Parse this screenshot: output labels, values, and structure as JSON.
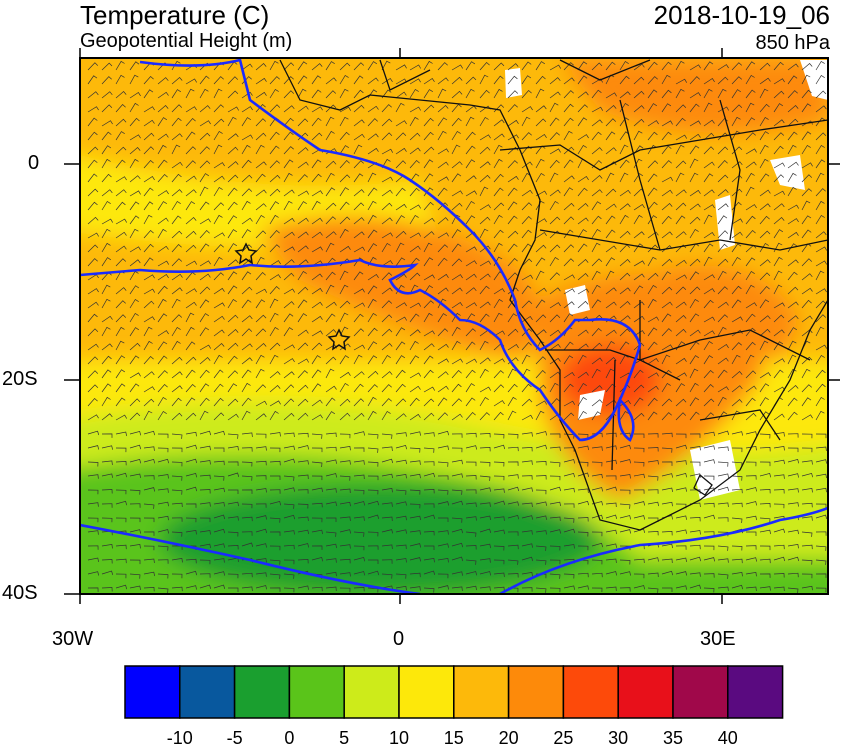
{
  "titles": {
    "main": "Temperature (C)",
    "sub": "Geopotential Height (m)",
    "date": "2018-10-19_06",
    "level": "850 hPa"
  },
  "axes": {
    "lat_labels": [
      "0",
      "20S",
      "40S"
    ],
    "lon_labels": [
      "30W",
      "0",
      "30E"
    ]
  },
  "colorbar": {
    "labels": [
      "-10",
      "-5",
      "0",
      "5",
      "10",
      "15",
      "20",
      "25",
      "30",
      "35",
      "40"
    ],
    "colors": [
      "#0000ff",
      "#08589e",
      "#1a9f2f",
      "#5ac41a",
      "#cdeb1a",
      "#fde80a",
      "#fdb90a",
      "#fd8a0a",
      "#fd4a0a",
      "#e8101a",
      "#a0084a",
      "#5a0a80"
    ]
  },
  "map_colors": {
    "warm_core": "#fd8a0a",
    "hot_core": "#fd4a0a",
    "ocean_warm": "#fdb90a",
    "mild": "#fde80a",
    "cool": "#cdeb1a",
    "cold": "#5ac41a",
    "coldest": "#1a9f2f",
    "contour": "#1a2aff"
  },
  "markers": {
    "star_icon_count": 2
  }
}
